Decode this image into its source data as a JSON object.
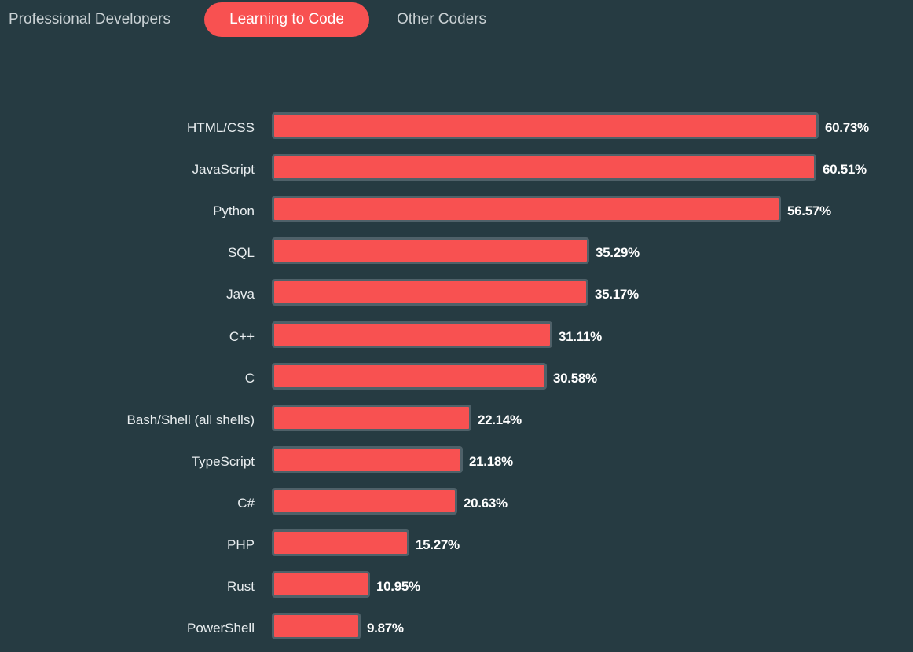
{
  "tabs": [
    {
      "label": "Professional Developers",
      "active": false
    },
    {
      "label": "Learning to Code",
      "active": true
    },
    {
      "label": "Other Coders",
      "active": false
    }
  ],
  "colors": {
    "background": "#263b42",
    "bar": "#f85151",
    "bar_border": "#4f6169",
    "active_tab": "#f85151"
  },
  "chart_data": {
    "type": "bar",
    "orientation": "horizontal",
    "value_unit": "%",
    "categories": [
      "HTML/CSS",
      "JavaScript",
      "Python",
      "SQL",
      "Java",
      "C++",
      "C",
      "Bash/Shell (all shells)",
      "TypeScript",
      "C#",
      "PHP",
      "Rust",
      "PowerShell"
    ],
    "values": [
      60.73,
      60.51,
      56.57,
      35.29,
      35.17,
      31.11,
      30.58,
      22.14,
      21.18,
      20.63,
      15.27,
      10.95,
      9.87
    ],
    "value_labels": [
      "60.73%",
      "60.51%",
      "56.57%",
      "35.29%",
      "35.17%",
      "31.11%",
      "30.58%",
      "22.14%",
      "21.18%",
      "20.63%",
      "15.27%",
      "10.95%",
      "9.87%"
    ]
  }
}
